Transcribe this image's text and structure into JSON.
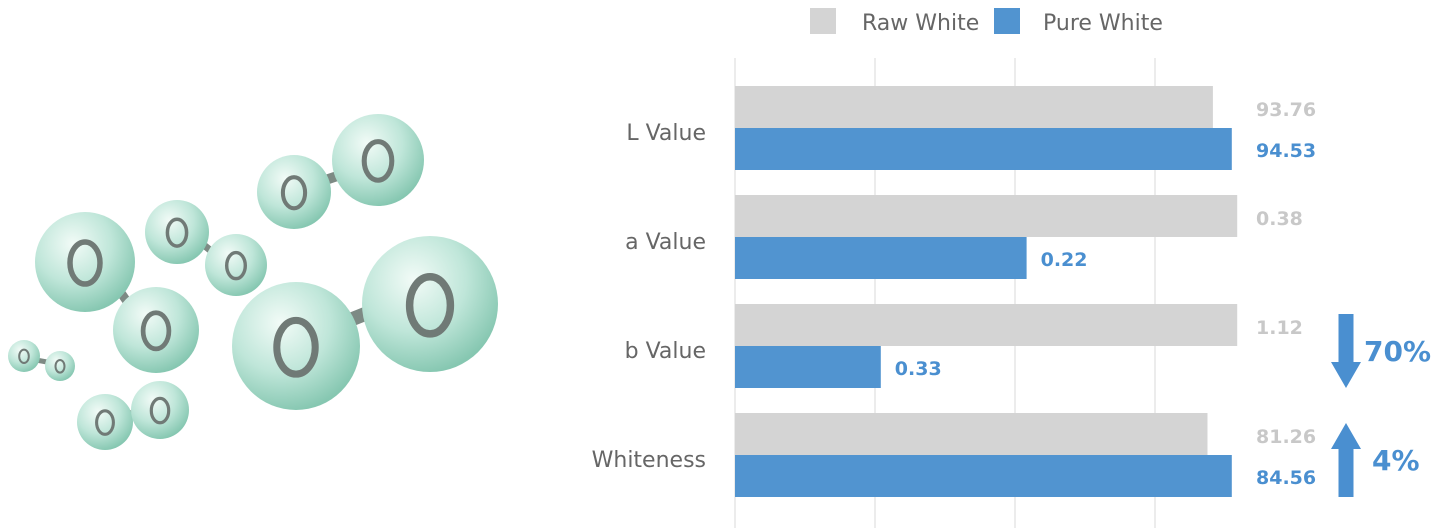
{
  "chart_data": {
    "type": "bar",
    "orientation": "horizontal",
    "categories": [
      "L Value",
      "a Value",
      "b Value",
      "Whiteness"
    ],
    "series": [
      {
        "name": "Raw White",
        "color": "#d4d4d4",
        "label_color": "#c8c8c8",
        "values": [
          93.76,
          0.38,
          1.12,
          81.26
        ],
        "display_fraction": [
          0.885,
          0.93,
          0.93,
          0.875
        ]
      },
      {
        "name": "Pure White",
        "color": "#5194d0",
        "label_color": "#4a8fd0",
        "values": [
          94.53,
          0.22,
          0.33,
          84.56
        ],
        "display_fraction": [
          0.92,
          0.54,
          0.27,
          0.92
        ]
      }
    ],
    "value_labels": {
      "raw": [
        "93.76",
        "0.38",
        "1.12",
        "81.26"
      ],
      "pure": [
        "94.53",
        "0.22",
        "0.33",
        "84.56"
      ]
    },
    "legend_position": "top",
    "grid": true,
    "annotations": [
      {
        "category": "b Value",
        "direction": "down",
        "text": "70%"
      },
      {
        "category": "Whiteness",
        "direction": "up",
        "text": "4%"
      }
    ],
    "annotation_color": "#4a8fd0",
    "label_text_color": "#666666",
    "grid_color": "#e6e6e6"
  },
  "illustration": {
    "type": "oxygen-molecules",
    "sphere_color": "#bfe6d9",
    "sphere_edge": "#86c7b1",
    "letter_color": "#707a76"
  }
}
